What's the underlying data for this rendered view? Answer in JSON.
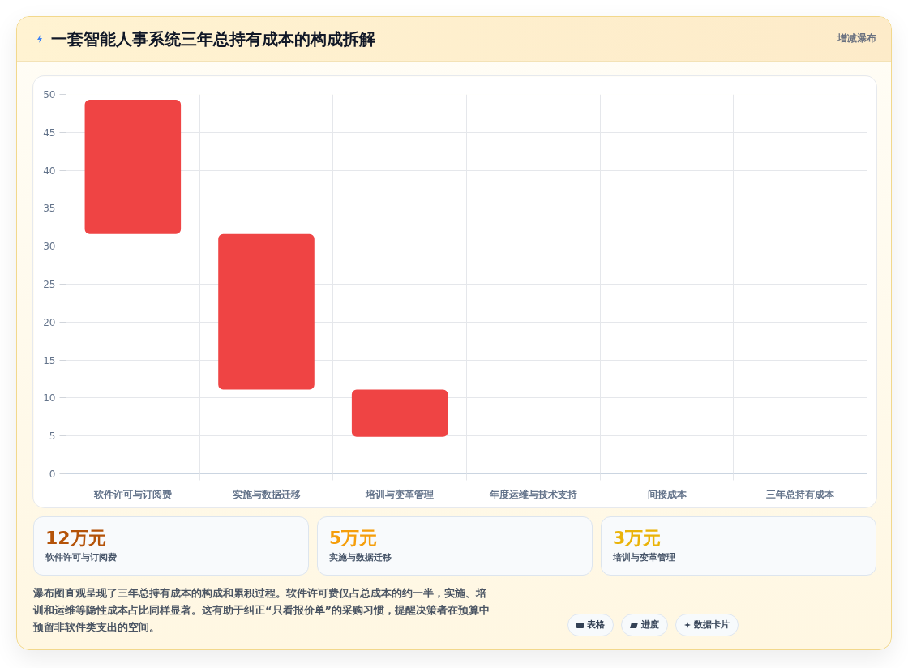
{
  "chart_data": [
    {
      "type": "bar",
      "title": "一套智能人事系统三年总持有成本的构成拆解",
      "subtitle": "增减瀑布",
      "categories": [
        "软件许可与订阅费",
        "实施与数据迁移",
        "培训与变革管理",
        "年度运维与技术支持",
        "间接成本",
        "三年总持有成本"
      ],
      "base": [
        31.6,
        11.1,
        4.9,
        null,
        null,
        null
      ],
      "values": [
        17.7,
        20.5,
        6.2,
        null,
        null,
        null
      ],
      "color": "#ef4444",
      "ylim": [
        0,
        50
      ],
      "yticks": [
        0,
        5,
        10,
        15,
        20,
        25,
        30,
        35,
        40,
        45,
        50
      ],
      "grid": true,
      "annotations": [
        "瀑布图直观呈现了三年总持有成本的构成和累积过程。软件许可费仅占总成本的约一半，实施、培训和运维等隐性成本占比同样显著。这有助于纠正“只看报价单”的采购习惯，提醒决策者在预算中预留非软件类支出的空间。",
        "表格",
        "进度",
        "数据卡片"
      ]
    },
    {
      "type": "other",
      "annotations": [
        "12万元",
        "软件许可与订阅费",
        "5万元",
        "实施与数据迁移",
        "3万元",
        "培训与变革管理"
      ]
    }
  ]
}
